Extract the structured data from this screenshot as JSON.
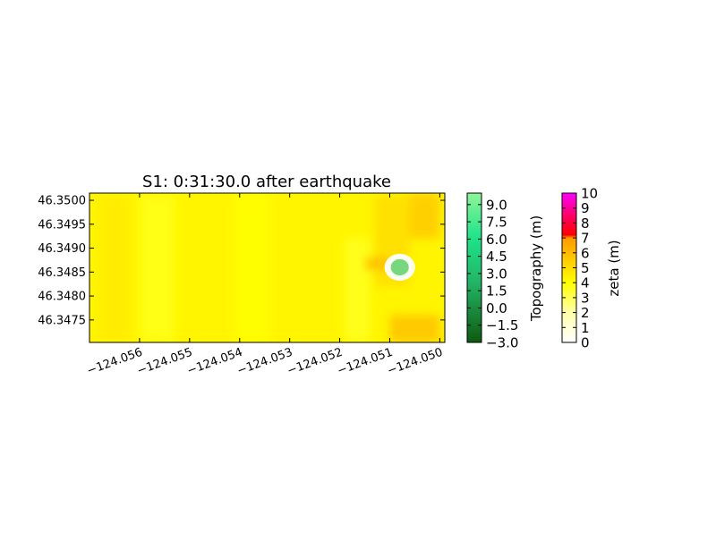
{
  "chart_data": {
    "type": "heatmap",
    "title": "S1: 0:31:30.0 after earthquake",
    "xlim": [
      -124.057,
      -124.0499
    ],
    "ylim": [
      46.34703,
      46.35015
    ],
    "x_ticks": [
      -124.056,
      -124.055,
      -124.054,
      -124.053,
      -124.052,
      -124.051,
      -124.05
    ],
    "x_tick_labels": [
      "−124.056",
      "−124.055",
      "−124.054",
      "−124.053",
      "−124.052",
      "−124.051",
      "−124.050"
    ],
    "y_ticks": [
      46.35,
      46.3495,
      46.349,
      46.3485,
      46.348,
      46.3475
    ],
    "y_tick_labels": [
      "46.3500",
      "46.3495",
      "46.3490",
      "46.3485",
      "46.3480",
      "46.3475"
    ],
    "grid": false,
    "field": {
      "name": "zeta",
      "base_value": 4.3,
      "regions": [
        {
          "x": [
            -124.0568,
            -124.0562
          ],
          "y": [
            46.34705,
            46.3501
          ],
          "value": 4.6
        },
        {
          "x": [
            -124.056,
            -124.0553
          ],
          "y": [
            46.34705,
            46.3501
          ],
          "value": 3.7
        },
        {
          "x": [
            -124.0541,
            -124.0534
          ],
          "y": [
            46.34705,
            46.3501
          ],
          "value": 4.0
        },
        {
          "x": [
            -124.0519,
            -124.0514
          ],
          "y": [
            46.34705,
            46.3492
          ],
          "value": 3.6
        },
        {
          "x": [
            -124.0513,
            -124.0506
          ],
          "y": [
            46.3482,
            46.3501
          ],
          "value": 5.0
        },
        {
          "x": [
            -124.0506,
            -124.05
          ],
          "y": [
            46.3492,
            46.35015
          ],
          "value": 5.6
        },
        {
          "x": [
            -124.051,
            -124.05
          ],
          "y": [
            46.34703,
            46.3476
          ],
          "value": 5.8
        },
        {
          "x": [
            -124.0515,
            -124.051
          ],
          "y": [
            46.34855,
            46.3488
          ],
          "value": 6.0
        }
      ],
      "island": {
        "center": [
          -124.0508,
          46.3486
        ],
        "radius_x": 0.00018,
        "radius_y": 0.00017,
        "topography": 7.5
      }
    },
    "colorbars": [
      {
        "label": "Topography (m)",
        "range": [
          -3.0,
          10.0
        ],
        "ticks": [
          9.0,
          7.5,
          6.0,
          4.5,
          3.0,
          1.5,
          0.0,
          -1.5,
          -3.0
        ],
        "tick_labels": [
          "9.0",
          "7.5",
          "6.0",
          "4.5",
          "3.0",
          "1.5",
          "0.0",
          "−1.5",
          "−3.0"
        ],
        "colors": [
          "#0f5a0f",
          "#1fe38a",
          "#8ff59a"
        ]
      },
      {
        "label": "zeta (m)",
        "range": [
          0,
          10
        ],
        "ticks": [
          10,
          9,
          8,
          7,
          6,
          5,
          4,
          3,
          2,
          1,
          0
        ],
        "tick_labels": [
          "10",
          "9",
          "8",
          "7",
          "6",
          "5",
          "4",
          "3",
          "2",
          "1",
          "0"
        ],
        "colors": [
          "#ffffff",
          "#ffff00",
          "#ff9900",
          "#ff0000",
          "#ff00ff"
        ]
      }
    ]
  }
}
